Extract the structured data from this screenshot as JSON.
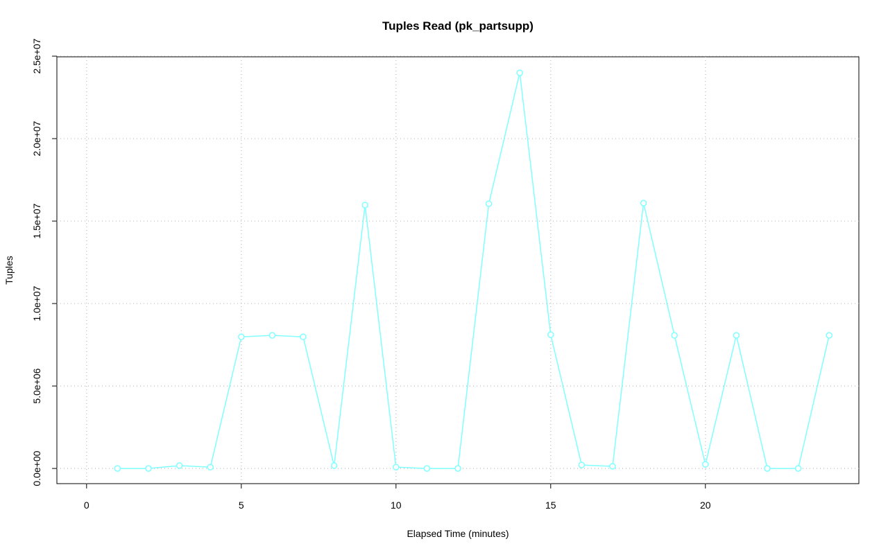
{
  "chart_data": {
    "type": "line",
    "title": "Tuples Read (pk_partsupp)",
    "x_label": "Elapsed Time (minutes)",
    "y_label": "Tuples",
    "x": [
      1,
      2,
      3,
      4,
      5,
      6,
      7,
      8,
      9,
      10,
      11,
      12,
      13,
      14,
      15,
      16,
      17,
      18,
      19,
      20,
      21,
      22,
      23,
      24
    ],
    "series": [
      {
        "color": "#7fffff",
        "values": [
          0,
          0,
          170000,
          80000,
          7980000,
          8070000,
          7980000,
          170000,
          15970000,
          80000,
          0,
          0,
          16050000,
          23990000,
          8110000,
          210000,
          130000,
          16090000,
          8070000,
          250000,
          8070000,
          0,
          0,
          8070000
        ]
      }
    ],
    "xlim": [
      -0.96,
      24.96
    ],
    "xticks": [
      0,
      5,
      10,
      15,
      20
    ],
    "ylim": [
      -920000,
      24960000
    ],
    "yticks": [
      {
        "value": 0,
        "label": "0.0e+00"
      },
      {
        "value": 5000000,
        "label": "5.0e+06"
      },
      {
        "value": 10000000,
        "label": "1.0e+07"
      },
      {
        "value": 15000000,
        "label": "1.5e+07"
      },
      {
        "value": 20000000,
        "label": "2.0e+07"
      },
      {
        "value": 25000000,
        "label": "2.5e+07"
      }
    ],
    "grid": true
  }
}
